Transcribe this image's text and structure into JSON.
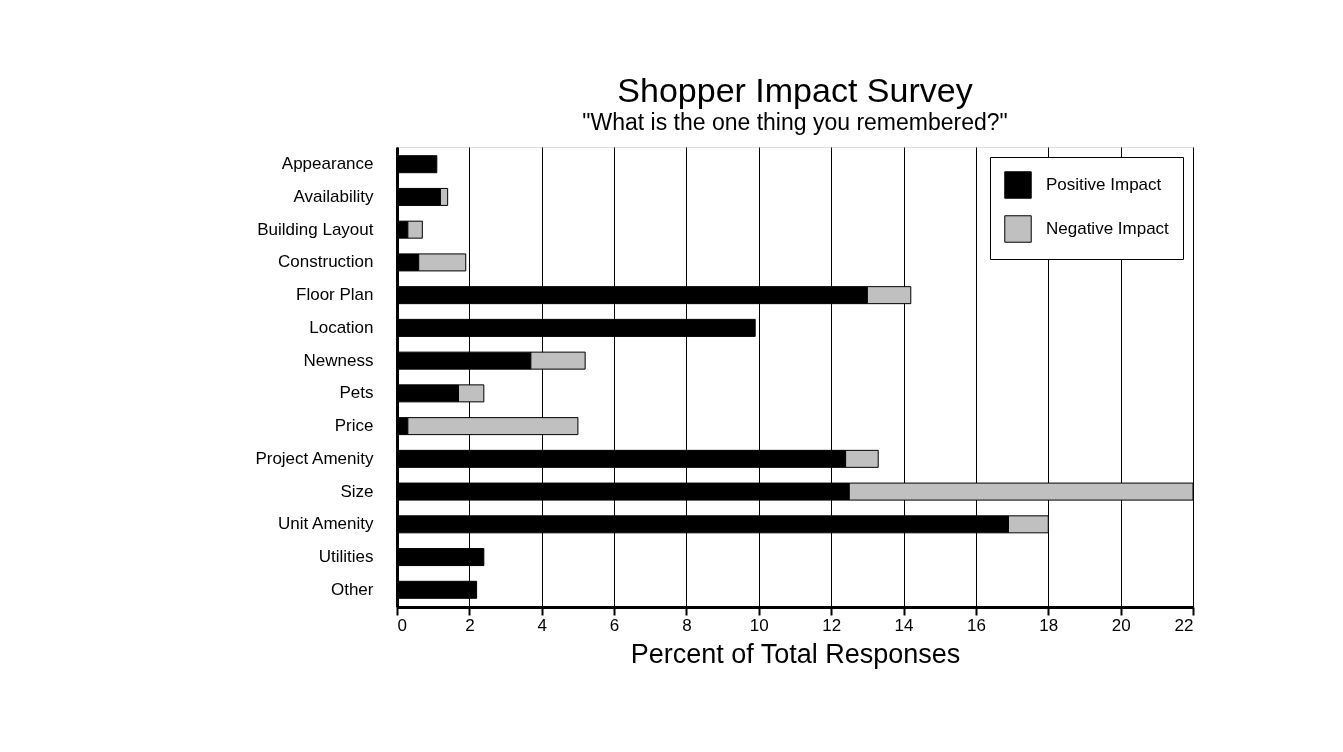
{
  "chart_data": {
    "type": "bar",
    "orientation": "horizontal",
    "stacked": true,
    "title": "Shopper Impact Survey",
    "subtitle": "\"What is the one thing you remembered?\"",
    "xlabel": "Percent of Total Responses",
    "categories": [
      "Appearance",
      "Availability",
      "Building Layout",
      "Construction",
      "Floor Plan",
      "Location",
      "Newness",
      "Pets",
      "Price",
      "Project Amenity",
      "Size",
      "Unit Amenity",
      "Utilities",
      "Other"
    ],
    "series": [
      {
        "name": "Positive Impact",
        "color": "#000000",
        "values": [
          1.1,
          1.2,
          0.3,
          0.6,
          13.0,
          9.9,
          3.7,
          1.7,
          0.3,
          12.4,
          12.5,
          16.9,
          2.4,
          2.2
        ]
      },
      {
        "name": "Negative Impact",
        "color": "#c0c0c0",
        "values": [
          null,
          0.2,
          0.4,
          1.3,
          1.2,
          null,
          1.5,
          0.7,
          4.7,
          0.9,
          9.5,
          1.1,
          null,
          null
        ]
      }
    ],
    "xlim": [
      0,
      22
    ],
    "xticks": [
      0,
      2,
      4,
      6,
      8,
      10,
      12,
      14,
      16,
      18,
      20,
      22
    ],
    "grid": "x",
    "legend": "top right"
  }
}
